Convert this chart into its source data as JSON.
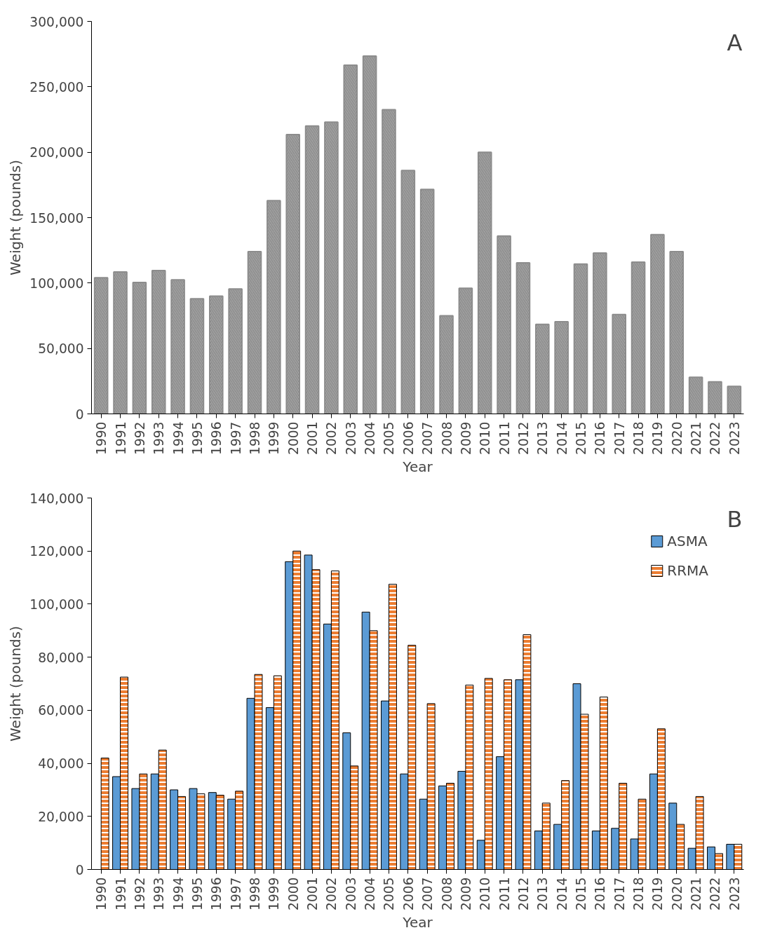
{
  "chart_data": [
    {
      "type": "bar",
      "xlabel": "Year",
      "ylabel": "Weight (pounds)",
      "annotations": [
        "A"
      ],
      "categories": [
        "1990",
        "1991",
        "1992",
        "1993",
        "1994",
        "1995",
        "1996",
        "1997",
        "1998",
        "1999",
        "2000",
        "2001",
        "2002",
        "2003",
        "2004",
        "2005",
        "2006",
        "2007",
        "2008",
        "2009",
        "2010",
        "2011",
        "2012",
        "2013",
        "2014",
        "2015",
        "2016",
        "2017",
        "2018",
        "2019",
        "2020",
        "2021",
        "2022",
        "2023"
      ],
      "series": [
        {
          "color": "#a6a6a6",
          "values": [
            104000,
            108500,
            100500,
            109500,
            102500,
            88000,
            90000,
            95500,
            124000,
            163000,
            213500,
            220000,
            223000,
            266500,
            273500,
            232500,
            186000,
            171500,
            75000,
            96000,
            200000,
            136000,
            115500,
            68500,
            70500,
            114500,
            123000,
            76000,
            116000,
            137000,
            124000,
            28000,
            24500,
            21000
          ]
        }
      ],
      "ylim": [
        0,
        300000
      ],
      "yticks": [
        0,
        {
          "value": 50000,
          "label": "50,000"
        },
        {
          "value": 100000,
          "label": "100,000"
        },
        {
          "value": 150000,
          "label": "150,000"
        },
        {
          "value": 200000,
          "label": "200,000"
        },
        {
          "value": 250000,
          "label": "250,000"
        },
        {
          "value": 300000,
          "label": "300,000"
        }
      ],
      "grid": false,
      "legend": false
    },
    {
      "type": "bar",
      "xlabel": "Year",
      "ylabel": "Weight (pounds)",
      "annotations": [
        "B"
      ],
      "categories": [
        "1990",
        "1991",
        "1992",
        "1993",
        "1994",
        "1995",
        "1996",
        "1997",
        "1998",
        "1999",
        "2000",
        "2001",
        "2002",
        "2003",
        "2004",
        "2005",
        "2006",
        "2007",
        "2008",
        "2009",
        "2010",
        "2011",
        "2012",
        "2013",
        "2014",
        "2015",
        "2016",
        "2017",
        "2018",
        "2019",
        "2020",
        "2021",
        "2022",
        "2023"
      ],
      "series": [
        {
          "name": "ASMA",
          "color": "#5b9bd5",
          "values": [
            null,
            35000,
            30500,
            36000,
            30000,
            30500,
            29000,
            26500,
            64500,
            61000,
            116000,
            118500,
            92500,
            51500,
            97000,
            63500,
            36000,
            26500,
            31500,
            37000,
            11000,
            42500,
            71500,
            14500,
            17000,
            70000,
            14500,
            15500,
            11500,
            36000,
            25000,
            8000,
            8500,
            9500
          ]
        },
        {
          "name": "RRMA",
          "color": "#ed7d31",
          "values": [
            42000,
            72500,
            36000,
            45000,
            27500,
            28500,
            28000,
            29500,
            73500,
            73000,
            120000,
            113000,
            112500,
            39000,
            90000,
            107500,
            84500,
            62500,
            32500,
            69500,
            72000,
            71500,
            88500,
            25000,
            33500,
            58500,
            65000,
            32500,
            26500,
            53000,
            17000,
            27500,
            6000,
            9500
          ]
        }
      ],
      "ylim": [
        0,
        140000
      ],
      "yticks": [
        0,
        {
          "value": 20000,
          "label": "20,000"
        },
        {
          "value": 40000,
          "label": "40,000"
        },
        {
          "value": 60000,
          "label": "60,000"
        },
        {
          "value": 80000,
          "label": "80,000"
        },
        {
          "value": 100000,
          "label": "100,000"
        },
        {
          "value": 120000,
          "label": "120,000"
        },
        {
          "value": 140000,
          "label": "140,000"
        }
      ],
      "grid": false,
      "legend": "top right"
    }
  ]
}
